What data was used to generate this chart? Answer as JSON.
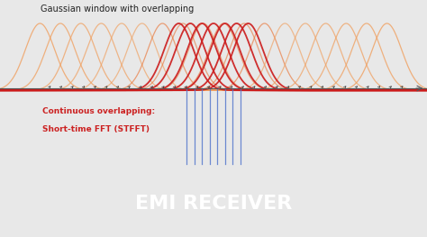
{
  "title_top": "Gaussian window with overlapping",
  "label_left1": "Continuous overlapping:",
  "label_left2": "Short-time FFT (STFFT)",
  "banner_text": "EMI RECEIVER",
  "bg_color": "#e8e8e8",
  "banner_color": "#a0233a",
  "banner_text_color": "#ffffff",
  "title_color": "#222222",
  "label_color": "#cc2222",
  "orange_color": "#e87030",
  "orange_light_color": "#f0a060",
  "red_color": "#cc1a1a",
  "blue_color": "#5577cc",
  "n_orange_gaussians": 18,
  "n_red_gaussians": 7,
  "n_blue_lines": 8,
  "gaussian_sigma": 0.55,
  "x_min": -1.5,
  "x_max": 14.5,
  "y_min": -1.2,
  "y_max": 1.35
}
